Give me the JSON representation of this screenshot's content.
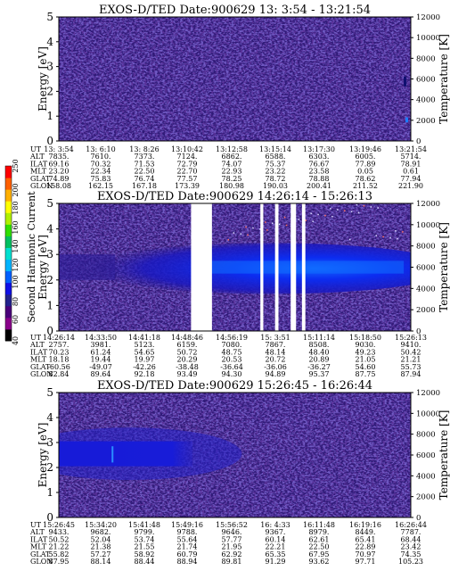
{
  "chart_data": [
    {
      "type": "heatmap",
      "title": "EXOS-D/TED   Date:900629  13: 3:54 - 13:21:54",
      "ylabel": "Energy [eV]",
      "ylabel_right": "Temperature [K]",
      "ylim": [
        0,
        5
      ],
      "yticks": [
        "0",
        "1",
        "2",
        "3",
        "4",
        "5"
      ],
      "ylim_right": [
        0,
        12000
      ],
      "yticks_right": [
        "0",
        "2000",
        "4000",
        "6000",
        "8000",
        "10000",
        "12000"
      ],
      "row_labels": [
        "UT",
        "ALT",
        "ILAT",
        "MLT",
        "GLAT",
        "GLON"
      ],
      "columns": [
        {
          "UT": "13: 3:54",
          "ALT": "7835.",
          "ILAT": "69.16",
          "MLT": "23.20",
          "GLAT": "74.89",
          "GLON": "158.08"
        },
        {
          "UT": "13: 6:10",
          "ALT": "7610.",
          "ILAT": "70.32",
          "MLT": "22.34",
          "GLAT": "75.83",
          "GLON": "162.15"
        },
        {
          "UT": "13: 8:26",
          "ALT": "7373.",
          "ILAT": "71.53",
          "MLT": "22.50",
          "GLAT": "76.74",
          "GLON": "167.18"
        },
        {
          "UT": "13:10:42",
          "ALT": "7124.",
          "ILAT": "72.79",
          "MLT": "22.70",
          "GLAT": "77.57",
          "GLON": "173.39"
        },
        {
          "UT": "13:12:58",
          "ALT": "6862.",
          "ILAT": "74.07",
          "MLT": "22.93",
          "GLAT": "78.25",
          "GLON": "180.98"
        },
        {
          "UT": "13:15:14",
          "ALT": "6588.",
          "ILAT": "75.37",
          "MLT": "23.22",
          "GLAT": "78.72",
          "GLON": "190.03"
        },
        {
          "UT": "13:17:30",
          "ALT": "6303.",
          "ILAT": "76.67",
          "MLT": "23.58",
          "GLAT": "78.88",
          "GLON": "200.41"
        },
        {
          "UT": "13:19:46",
          "ALT": "6005.",
          "ILAT": "77.89",
          "MLT": "0.05",
          "GLAT": "78.62",
          "GLON": "211.52"
        },
        {
          "UT": "13:21:54",
          "ALT": "5714.",
          "ILAT": "78.91",
          "MLT": "0.61",
          "GLAT": "77.94",
          "GLON": "221.90"
        }
      ],
      "data_gaps": []
    },
    {
      "type": "heatmap",
      "title": "EXOS-D/TED   Date:900629  14:26:14 - 15:26:13",
      "ylabel": "Energy [eV]",
      "ylabel_right": "Temperature [K]",
      "ylim": [
        0,
        5
      ],
      "yticks": [
        "0",
        "1",
        "2",
        "3",
        "4",
        "5"
      ],
      "ylim_right": [
        0,
        12000
      ],
      "yticks_right": [
        "0",
        "2000",
        "4000",
        "6000",
        "8000",
        "10000",
        "12000"
      ],
      "row_labels": [
        "UT",
        "ALT",
        "ILAT",
        "MLT",
        "GLAT",
        "GLON"
      ],
      "columns": [
        {
          "UT": "14:26:14",
          "ALT": "2757.",
          "ILAT": "70.23",
          "MLT": "18.18",
          "GLAT": "-60.56",
          "GLON": "82.84"
        },
        {
          "UT": "14:33:50",
          "ALT": "3981.",
          "ILAT": "61.24",
          "MLT": "19.44",
          "GLAT": "-49.07",
          "GLON": "89.64"
        },
        {
          "UT": "14:41:18",
          "ALT": "5123.",
          "ILAT": "54.65",
          "MLT": "19.97",
          "GLAT": "-42.26",
          "GLON": "92.18"
        },
        {
          "UT": "14:48:46",
          "ALT": "6159.",
          "ILAT": "50.72",
          "MLT": "20.29",
          "GLAT": "-38.48",
          "GLON": "93.49"
        },
        {
          "UT": "14:56:19",
          "ALT": "7080.",
          "ILAT": "48.75",
          "MLT": "20.53",
          "GLAT": "-36.64",
          "GLON": "94.30"
        },
        {
          "UT": "15: 3:51",
          "ALT": "7867.",
          "ILAT": "48.14",
          "MLT": "20.72",
          "GLAT": "-36.06",
          "GLON": "94.89"
        },
        {
          "UT": "15:11:14",
          "ALT": "8508.",
          "ILAT": "48.40",
          "MLT": "20.89",
          "GLAT": "-36.27",
          "GLON": "95.37"
        },
        {
          "UT": "15:18:50",
          "ALT": "9030.",
          "ILAT": "49.23",
          "MLT": "21.05",
          "GLAT": "54.60",
          "GLON": "87.75"
        },
        {
          "UT": "15:26:13",
          "ALT": "9410.",
          "ILAT": "50.42",
          "MLT": "21.21",
          "GLAT": "55.73",
          "GLON": "87.94"
        }
      ],
      "data_gaps": [
        {
          "from": "14:48:46",
          "to": "14:52:20"
        },
        {
          "from": "15:00:35",
          "to": "15:01:05"
        },
        {
          "from": "15:03:05",
          "to": "15:03:40"
        },
        {
          "from": "15:05:45",
          "to": "15:06:40"
        },
        {
          "from": "15:07:40",
          "to": "15:08:15"
        }
      ]
    },
    {
      "type": "heatmap",
      "title": "EXOS-D/TED   Date:900629  15:26:45 - 16:26:44",
      "ylabel": "Energy [eV]",
      "ylabel_right": "Temperature [K]",
      "ylim": [
        0,
        5
      ],
      "yticks": [
        "0",
        "1",
        "2",
        "3",
        "4",
        "5"
      ],
      "ylim_right": [
        0,
        12000
      ],
      "yticks_right": [
        "0",
        "2000",
        "4000",
        "6000",
        "8000",
        "10000",
        "12000"
      ],
      "row_labels": [
        "UT",
        "ALT",
        "ILAT",
        "MLT",
        "GLAT",
        "GLON"
      ],
      "columns": [
        {
          "UT": "15:26:45",
          "ALT": "9433.",
          "ILAT": "50.52",
          "MLT": "21.22",
          "GLAT": "55.82",
          "GLON": "87.95"
        },
        {
          "UT": "15:34:20",
          "ALT": "9682.",
          "ILAT": "52.04",
          "MLT": "21.38",
          "GLAT": "57.27",
          "GLON": "88.14"
        },
        {
          "UT": "15:41:48",
          "ALT": "9799.",
          "ILAT": "53.74",
          "MLT": "21.55",
          "GLAT": "58.92",
          "GLON": "88.44"
        },
        {
          "UT": "15:49:16",
          "ALT": "9788.",
          "ILAT": "55.64",
          "MLT": "21.74",
          "GLAT": "60.79",
          "GLON": "88.94"
        },
        {
          "UT": "15:56:52",
          "ALT": "9646.",
          "ILAT": "57.77",
          "MLT": "21.95",
          "GLAT": "62.92",
          "GLON": "89.81"
        },
        {
          "UT": "16: 4:33",
          "ALT": "9367.",
          "ILAT": "60.14",
          "MLT": "22.21",
          "GLAT": "65.35",
          "GLON": "91.29"
        },
        {
          "UT": "16:11:48",
          "ALT": "8979.",
          "ILAT": "62.61",
          "MLT": "22.50",
          "GLAT": "67.95",
          "GLON": "93.62"
        },
        {
          "UT": "16:19:16",
          "ALT": "8449.",
          "ILAT": "65.41",
          "MLT": "22.89",
          "GLAT": "70.97",
          "GLON": "97.71"
        },
        {
          "UT": "16:26:44",
          "ALT": "7787.",
          "ILAT": "68.44",
          "MLT": "23.42",
          "GLAT": "74.35",
          "GLON": "105.23"
        }
      ],
      "data_gaps": []
    }
  ],
  "colorbar": {
    "label": "Second Harmonic Current",
    "range": [
      40,
      250
    ],
    "ticks": [
      "40",
      "60",
      "80",
      "100",
      "120",
      "140",
      "160",
      "180",
      "200",
      "250"
    ],
    "colors": [
      "#000000",
      "#8a008a",
      "#4a007a",
      "#22228c",
      "#1010e6",
      "#0060ff",
      "#00b4ff",
      "#00e0d0",
      "#00c060",
      "#30e000",
      "#b0f000",
      "#ffff00",
      "#ffb000",
      "#ff6000",
      "#ff0000"
    ]
  },
  "colors": {
    "background_field": "#301a78",
    "noise_dark": "#240c5c",
    "noise_blue": "#2c2ca8",
    "core_blue": "#0a18e8",
    "core_bright": "#1070ff",
    "gap": "#ffffff"
  }
}
